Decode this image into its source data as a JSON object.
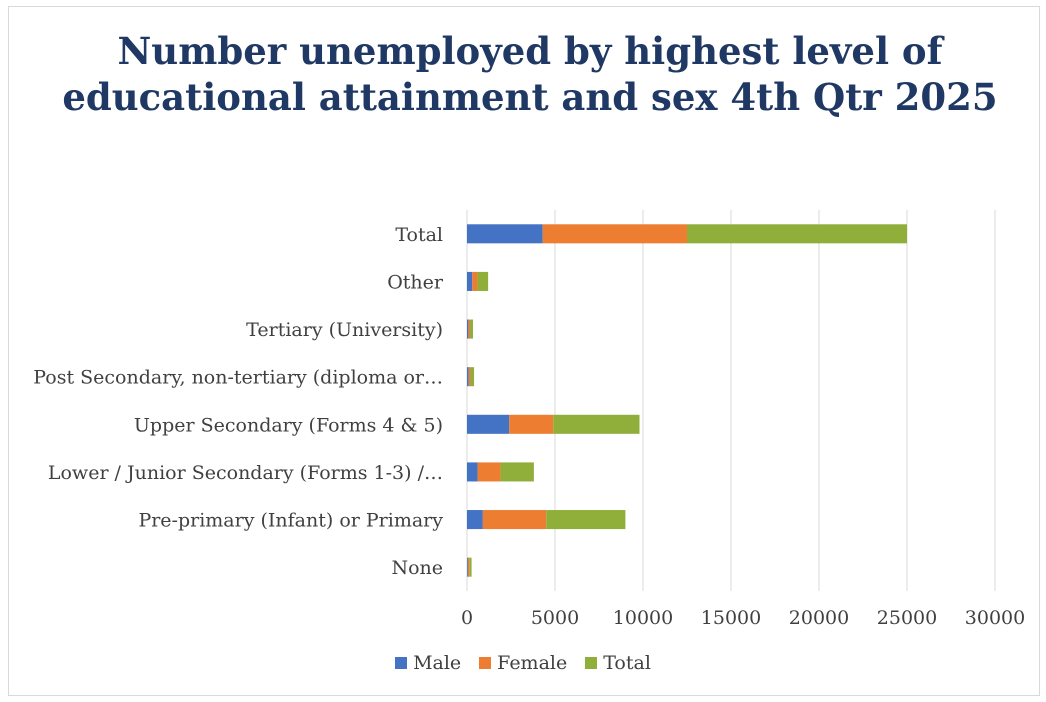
{
  "chart_data": {
    "type": "bar",
    "orientation": "horizontal",
    "stacked": true,
    "title": "Number unemployed by highest level of educational attainment and sex 4th Qtr 2025",
    "categories": [
      "None",
      "Pre-primary (Infant)  or Primary",
      "Lower / Junior Secondary (Forms 1-3) /…",
      "Upper Secondary (Forms 4 & 5)",
      "Post Secondary, non-tertiary (diploma or…",
      "Tertiary (University)",
      "Other",
      "Total"
    ],
    "series": [
      {
        "name": "Male",
        "color": "#4472c4",
        "values": [
          50,
          900,
          600,
          2400,
          100,
          80,
          300,
          4300
        ]
      },
      {
        "name": "Female",
        "color": "#ed7d31",
        "values": [
          80,
          3600,
          1300,
          2500,
          100,
          90,
          300,
          8200
        ]
      },
      {
        "name": "Total",
        "color": "#8faf3a",
        "values": [
          130,
          4500,
          1900,
          4900,
          200,
          170,
          600,
          12500
        ]
      }
    ],
    "xlim": [
      0,
      30000
    ],
    "xticks": [
      "0",
      "5000",
      "10000",
      "15000",
      "20000",
      "25000",
      "30000"
    ],
    "xtick_values": [
      0,
      5000,
      10000,
      15000,
      20000,
      25000,
      30000
    ],
    "grid": true,
    "legend_position": "bottom"
  }
}
